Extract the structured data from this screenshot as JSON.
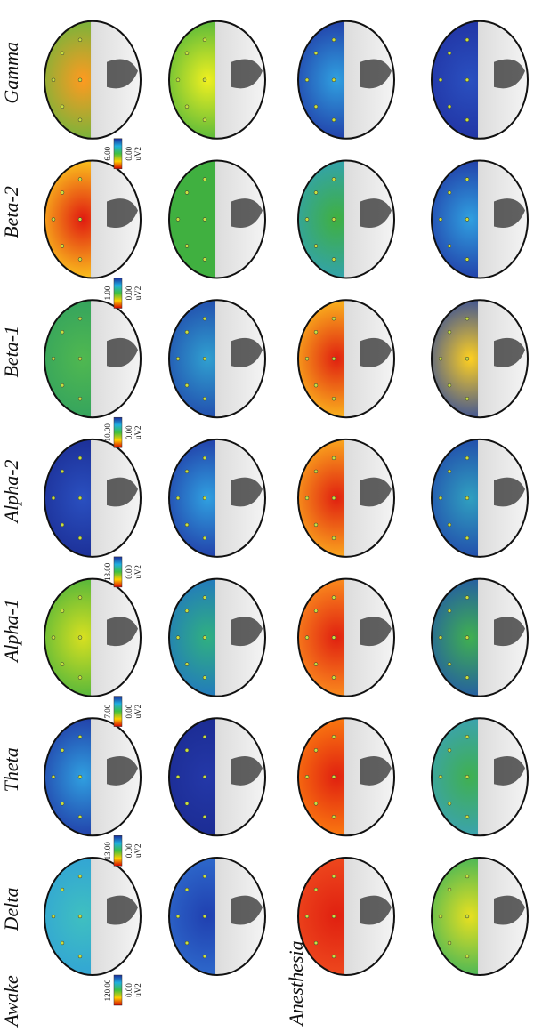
{
  "conditions": [
    "Awake",
    "Anesthesia"
  ],
  "bands": [
    {
      "name": "Delta",
      "scale_max": "120.00",
      "scale_min": "0.00",
      "unit": "uV2"
    },
    {
      "name": "Theta",
      "scale_max": "13.00",
      "scale_min": "0.00",
      "unit": "uV2"
    },
    {
      "name": "Alpha-1",
      "scale_max": "7.00",
      "scale_min": "0.00",
      "unit": "uV2"
    },
    {
      "name": "Alpha-2",
      "scale_max": "13.00",
      "scale_min": "0.00",
      "unit": "uV2"
    },
    {
      "name": "Beta-1",
      "scale_max": "10.00",
      "scale_min": "0.00",
      "unit": "uV2"
    },
    {
      "name": "Beta-2",
      "scale_max": "1.00",
      "scale_min": "0.00",
      "unit": "uV2"
    },
    {
      "name": "Gamma",
      "scale_max": "6.00",
      "scale_min": "0.00",
      "unit": "uV2"
    }
  ]
}
